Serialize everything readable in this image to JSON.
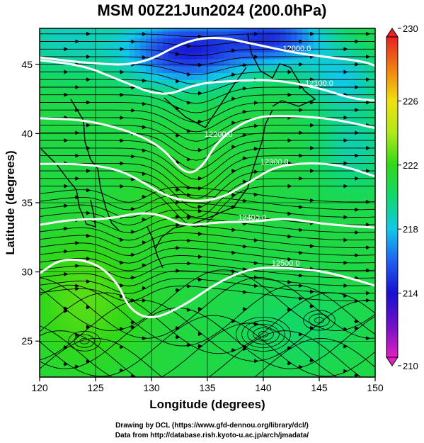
{
  "title": "MSM 00Z21Jun2024 (200.0hPa)",
  "chart_data": {
    "type": "heatmap",
    "xlabel": "Longitude (degrees)",
    "ylabel": "Latitude  (degrees)",
    "xlim": [
      120,
      150
    ],
    "ylim": [
      22.4,
      47.6
    ],
    "xticks": [
      "120",
      "125",
      "130",
      "135",
      "140",
      "145",
      "150"
    ],
    "yticks": [
      "25",
      "30",
      "35",
      "40",
      "45"
    ],
    "colorbar": {
      "range": [
        210,
        230
      ],
      "ticks": [
        "230",
        "226",
        "222",
        "218",
        "214",
        "210"
      ]
    },
    "fill_variable_range": [
      214,
      224
    ],
    "contours": [
      {
        "label": "12000.0",
        "points": [
          [
            120,
            45.5
          ],
          [
            124,
            45.1
          ],
          [
            129,
            44.9
          ],
          [
            133,
            46.7
          ],
          [
            136,
            47.0
          ],
          [
            139,
            46.5
          ],
          [
            143,
            45.8
          ],
          [
            146,
            45.5
          ],
          [
            149,
            45.2
          ],
          [
            150,
            44.9
          ]
        ]
      },
      {
        "label": "12100.0",
        "points": [
          [
            120,
            45.3
          ],
          [
            124,
            44.9
          ],
          [
            127,
            43.9
          ],
          [
            131,
            42.6
          ],
          [
            134,
            43.6
          ],
          [
            137,
            43.8
          ],
          [
            141,
            43.9
          ],
          [
            145,
            43.3
          ],
          [
            148,
            42.5
          ],
          [
            150,
            42.4
          ]
        ]
      },
      {
        "label": "12200.0",
        "points": [
          [
            120,
            41.1
          ],
          [
            124,
            41.0
          ],
          [
            128,
            40.2
          ],
          [
            131,
            39.0
          ],
          [
            133,
            37.0
          ],
          [
            134.5,
            37.5
          ],
          [
            136,
            39.6
          ],
          [
            139,
            41.2
          ],
          [
            142,
            41.3
          ],
          [
            146,
            41.1
          ],
          [
            150,
            40.4
          ]
        ]
      },
      {
        "label": "12300.0",
        "points": [
          [
            120,
            37.8
          ],
          [
            124,
            37.8
          ],
          [
            127,
            37.4
          ],
          [
            129,
            36.6
          ],
          [
            131,
            35.6
          ],
          [
            133,
            35.1
          ],
          [
            136,
            35.2
          ],
          [
            139,
            36.6
          ],
          [
            141,
            37.6
          ],
          [
            144,
            37.9
          ],
          [
            147,
            37.7
          ],
          [
            150,
            36.9
          ]
        ]
      },
      {
        "label": "12400.0",
        "points": [
          [
            120,
            33.4
          ],
          [
            123,
            33.8
          ],
          [
            126,
            33.8
          ],
          [
            129,
            34.3
          ],
          [
            131,
            34.1
          ],
          [
            133,
            33.3
          ],
          [
            136,
            33.6
          ],
          [
            139,
            33.6
          ],
          [
            142,
            33.9
          ],
          [
            145,
            33.5
          ],
          [
            148,
            33.3
          ],
          [
            150,
            33.2
          ]
        ]
      },
      {
        "label": "12500.0",
        "points": [
          [
            120,
            29.9
          ],
          [
            122,
            31.0
          ],
          [
            125,
            30.7
          ],
          [
            127,
            29.2
          ],
          [
            128,
            27.3
          ],
          [
            130,
            26.5
          ],
          [
            133,
            27.6
          ],
          [
            136,
            29.3
          ],
          [
            139,
            30.3
          ],
          [
            142,
            30.3
          ],
          [
            145,
            30.1
          ],
          [
            148,
            29.5
          ],
          [
            150,
            29.0
          ]
        ]
      }
    ]
  },
  "credits": {
    "line1": "Drawing by DCL (https://www.gfd-dennou.org/library/dcl/)",
    "line2": "Data from http://database.rish.kyoto-u.ac.jp/arch/jmadata/"
  }
}
